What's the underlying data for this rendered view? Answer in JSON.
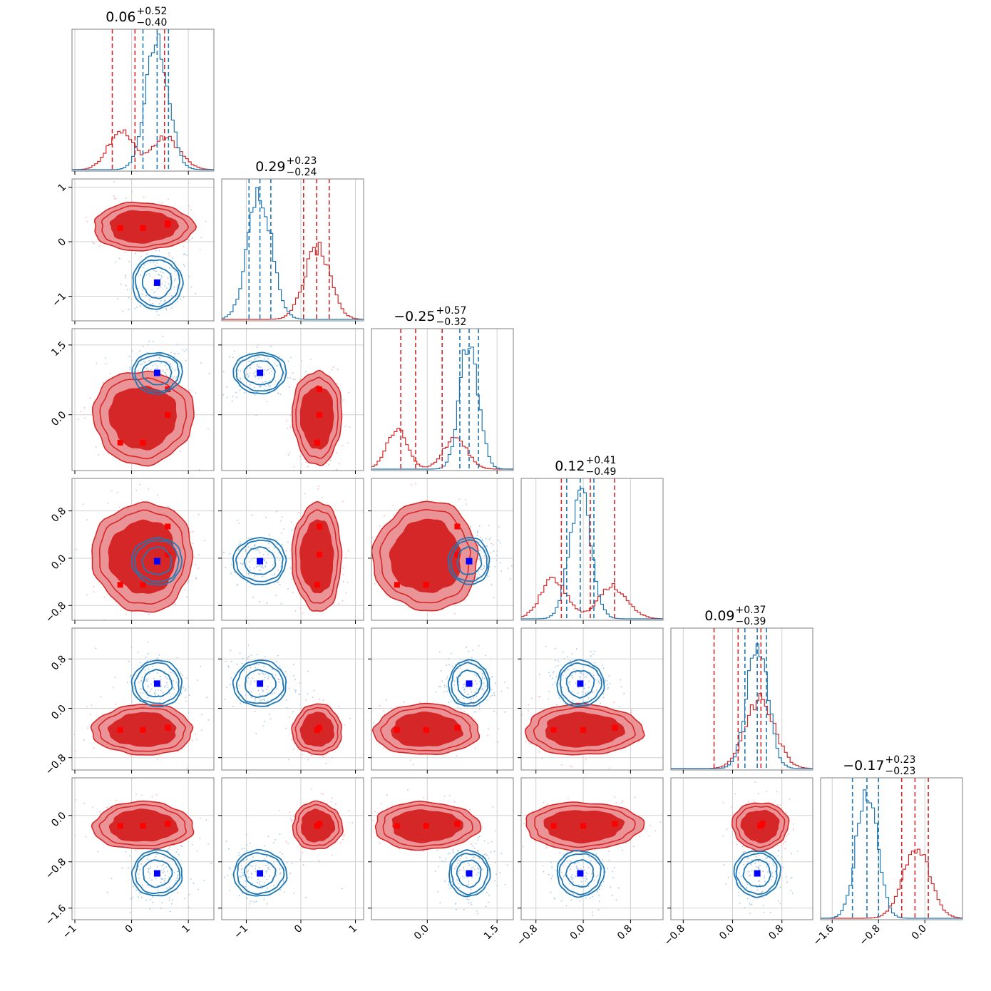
{
  "chart_data": {
    "type": "corner",
    "n_params": 6,
    "colors": {
      "red": "#d62728",
      "blue": "#1f77b4",
      "red_fill": "#eb9497",
      "blue_point": "#0000ff",
      "red_point": "#ff0000"
    },
    "grid": true,
    "titles": [
      {
        "median": "0.06",
        "plus": "+0.52",
        "minus": "−0.40"
      },
      {
        "median": "0.29",
        "plus": "+0.23",
        "minus": "−0.24"
      },
      {
        "median": "−0.25",
        "plus": "+0.57",
        "minus": "−0.32"
      },
      {
        "median": "0.12",
        "plus": "+0.41",
        "minus": "−0.49"
      },
      {
        "median": "0.09",
        "plus": "+0.37",
        "minus": "−0.39"
      },
      {
        "median": "−0.17",
        "plus": "+0.23",
        "minus": "−0.23"
      }
    ],
    "ranges": [
      [
        -1.05,
        1.45
      ],
      [
        -1.45,
        1.15
      ],
      [
        -1.2,
        1.85
      ],
      [
        -1.05,
        1.35
      ],
      [
        -1.0,
        1.3
      ],
      [
        -1.8,
        0.65
      ]
    ],
    "ticks": [
      {
        "values": [
          -1,
          0,
          1
        ],
        "labels": [
          "−1",
          "0",
          "1"
        ]
      },
      {
        "values": [
          -1,
          0,
          1
        ],
        "labels": [
          "−1",
          "0",
          "1"
        ]
      },
      {
        "values": [
          0.0,
          1.5
        ],
        "labels": [
          "0.0",
          "1.5"
        ]
      },
      {
        "values": [
          -0.8,
          0.0,
          0.8
        ],
        "labels": [
          "−0.8",
          "0.0",
          "0.8"
        ]
      },
      {
        "values": [
          -0.8,
          0.0,
          0.8
        ],
        "labels": [
          "−0.8",
          "0.0",
          "0.8"
        ]
      },
      {
        "values": [
          -1.6,
          -0.8,
          0.0
        ],
        "labels": [
          "−1.6",
          "−0.8",
          "0.0"
        ]
      }
    ],
    "blue_blob": [
      {
        "m": 0.45,
        "s": 0.2
      },
      {
        "m": -0.75,
        "s": 0.22
      },
      {
        "m": 0.9,
        "s": 0.2
      },
      {
        "m": -0.05,
        "s": 0.18
      },
      {
        "m": 0.4,
        "s": 0.17
      },
      {
        "m": -1.0,
        "s": 0.18
      }
    ],
    "red_blobs": [
      [
        -0.2,
        0.6,
        0.2,
        0.6
      ],
      [
        0.3,
        0.3,
        0.25,
        0.3
      ],
      [
        -0.65,
        0.6,
        -0.6,
        0.5
      ],
      [
        -0.5,
        0.5,
        -0.45,
        0.5
      ],
      [
        0.45,
        0.45,
        -0.35,
        -0.35
      ],
      [
        -0.15,
        -0.15,
        -0.18,
        -0.18
      ]
    ],
    "blue_diag_lines": [
      [
        0.2,
        0.45,
        0.65
      ],
      [
        -0.95,
        -0.75,
        -0.55
      ],
      [
        0.7,
        0.9,
        1.1
      ],
      [
        -0.28,
        -0.05,
        0.18
      ],
      [
        0.2,
        0.4,
        0.55
      ],
      [
        -1.25,
        -1.0,
        -0.8
      ]
    ],
    "red_diag_lines": [
      [
        -0.34,
        0.06,
        0.58
      ],
      [
        0.05,
        0.29,
        0.52
      ],
      [
        -0.57,
        -0.25,
        0.32
      ],
      [
        -0.37,
        0.12,
        0.53
      ],
      [
        -0.3,
        0.09,
        0.46
      ],
      [
        -0.4,
        -0.17,
        0.06
      ]
    ]
  }
}
